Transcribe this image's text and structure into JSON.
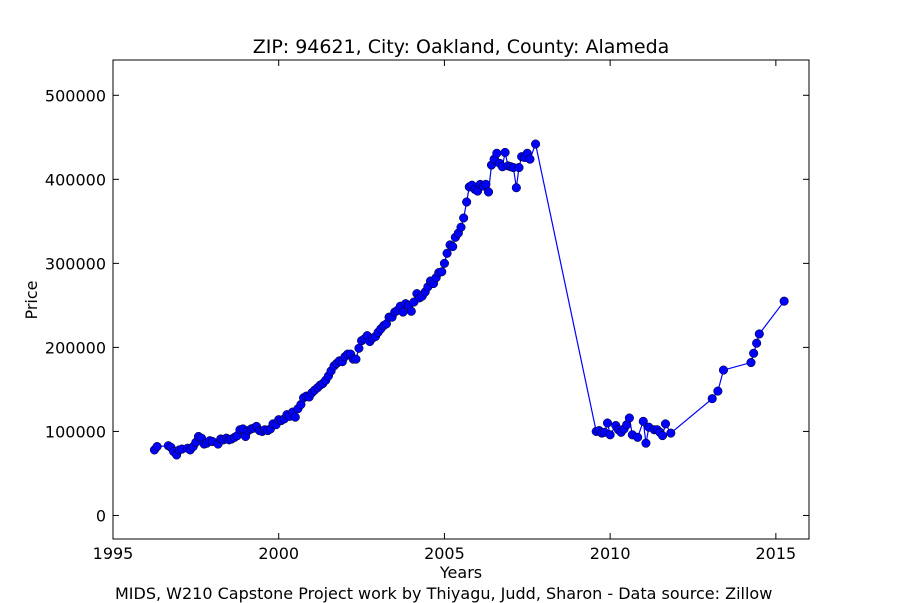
{
  "chart_data": {
    "type": "line",
    "title": "ZIP: 94621, City: Oakland, County: Alameda",
    "xlabel": "Years",
    "ylabel": "Price",
    "xlim": [
      1995,
      2016
    ],
    "ylim": [
      -28000,
      542000
    ],
    "x_ticks": [
      1995,
      2000,
      2005,
      2010,
      2015
    ],
    "y_ticks": [
      0,
      100000,
      200000,
      300000,
      400000,
      500000
    ],
    "grid": false,
    "legend": "none",
    "series": [
      {
        "color": "#0000ff",
        "marker": "circle",
        "points": [
          [
            1996.25,
            78000
          ],
          [
            1996.33,
            82000
          ],
          [
            1996.67,
            83000
          ],
          [
            1996.75,
            81000
          ],
          [
            1996.83,
            76000
          ],
          [
            1996.92,
            72000
          ],
          [
            1997.0,
            78000
          ],
          [
            1997.08,
            79000
          ],
          [
            1997.25,
            80000
          ],
          [
            1997.33,
            78000
          ],
          [
            1997.42,
            82000
          ],
          [
            1997.5,
            87000
          ],
          [
            1997.58,
            94000
          ],
          [
            1997.67,
            92000
          ],
          [
            1997.75,
            85000
          ],
          [
            1997.83,
            86000
          ],
          [
            1997.92,
            89000
          ],
          [
            1998.0,
            88000
          ],
          [
            1998.17,
            85000
          ],
          [
            1998.25,
            91000
          ],
          [
            1998.33,
            90000
          ],
          [
            1998.42,
            92000
          ],
          [
            1998.5,
            90000
          ],
          [
            1998.58,
            91000
          ],
          [
            1998.67,
            93000
          ],
          [
            1998.75,
            95000
          ],
          [
            1998.83,
            102000
          ],
          [
            1998.92,
            103000
          ],
          [
            1999.0,
            94000
          ],
          [
            1999.08,
            101000
          ],
          [
            1999.17,
            103000
          ],
          [
            1999.25,
            104000
          ],
          [
            1999.33,
            106000
          ],
          [
            1999.42,
            101000
          ],
          [
            1999.5,
            100000
          ],
          [
            1999.58,
            102000
          ],
          [
            1999.67,
            101000
          ],
          [
            1999.75,
            103000
          ],
          [
            1999.83,
            109000
          ],
          [
            1999.92,
            108000
          ],
          [
            2000.0,
            114000
          ],
          [
            2000.08,
            113000
          ],
          [
            2000.17,
            115000
          ],
          [
            2000.25,
            120000
          ],
          [
            2000.33,
            118000
          ],
          [
            2000.42,
            123000
          ],
          [
            2000.5,
            117000
          ],
          [
            2000.58,
            127000
          ],
          [
            2000.67,
            132000
          ],
          [
            2000.75,
            140000
          ],
          [
            2000.83,
            142000
          ],
          [
            2000.92,
            141000
          ],
          [
            2001.0,
            146000
          ],
          [
            2001.08,
            149000
          ],
          [
            2001.17,
            152000
          ],
          [
            2001.25,
            155000
          ],
          [
            2001.33,
            157000
          ],
          [
            2001.42,
            161000
          ],
          [
            2001.5,
            166000
          ],
          [
            2001.58,
            172000
          ],
          [
            2001.67,
            178000
          ],
          [
            2001.75,
            181000
          ],
          [
            2001.83,
            184000
          ],
          [
            2001.92,
            183000
          ],
          [
            2002.0,
            189000
          ],
          [
            2002.08,
            192000
          ],
          [
            2002.17,
            192000
          ],
          [
            2002.25,
            186000
          ],
          [
            2002.33,
            186000
          ],
          [
            2002.42,
            199000
          ],
          [
            2002.5,
            208000
          ],
          [
            2002.58,
            210000
          ],
          [
            2002.67,
            214000
          ],
          [
            2002.75,
            207000
          ],
          [
            2002.83,
            211000
          ],
          [
            2002.92,
            213000
          ],
          [
            2003.0,
            218000
          ],
          [
            2003.08,
            222000
          ],
          [
            2003.17,
            226000
          ],
          [
            2003.25,
            228000
          ],
          [
            2003.33,
            236000
          ],
          [
            2003.42,
            236000
          ],
          [
            2003.5,
            242000
          ],
          [
            2003.58,
            244000
          ],
          [
            2003.67,
            249000
          ],
          [
            2003.75,
            242000
          ],
          [
            2003.83,
            252000
          ],
          [
            2003.92,
            250000
          ],
          [
            2004.0,
            243000
          ],
          [
            2004.08,
            254000
          ],
          [
            2004.17,
            264000
          ],
          [
            2004.25,
            259000
          ],
          [
            2004.33,
            261000
          ],
          [
            2004.42,
            266000
          ],
          [
            2004.5,
            272000
          ],
          [
            2004.58,
            279000
          ],
          [
            2004.67,
            276000
          ],
          [
            2004.75,
            283000
          ],
          [
            2004.83,
            289000
          ],
          [
            2004.92,
            290000
          ],
          [
            2005.0,
            300000
          ],
          [
            2005.08,
            312000
          ],
          [
            2005.17,
            322000
          ],
          [
            2005.25,
            320000
          ],
          [
            2005.33,
            331000
          ],
          [
            2005.42,
            336000
          ],
          [
            2005.5,
            343000
          ],
          [
            2005.58,
            354000
          ],
          [
            2005.67,
            373000
          ],
          [
            2005.75,
            391000
          ],
          [
            2005.83,
            393000
          ],
          [
            2005.92,
            388000
          ],
          [
            2006.0,
            386000
          ],
          [
            2006.08,
            394000
          ],
          [
            2006.17,
            392000
          ],
          [
            2006.25,
            394000
          ],
          [
            2006.33,
            385000
          ],
          [
            2006.42,
            417000
          ],
          [
            2006.5,
            424000
          ],
          [
            2006.58,
            431000
          ],
          [
            2006.67,
            419000
          ],
          [
            2006.75,
            415000
          ],
          [
            2006.83,
            432000
          ],
          [
            2006.92,
            416000
          ],
          [
            2007.0,
            415000
          ],
          [
            2007.08,
            414000
          ],
          [
            2007.17,
            390000
          ],
          [
            2007.25,
            414000
          ],
          [
            2007.33,
            427000
          ],
          [
            2007.42,
            426000
          ],
          [
            2007.5,
            431000
          ],
          [
            2007.58,
            424000
          ],
          [
            2007.75,
            442000
          ],
          [
            2009.58,
            100000
          ],
          [
            2009.67,
            101000
          ],
          [
            2009.75,
            98000
          ],
          [
            2009.83,
            99000
          ],
          [
            2009.92,
            110000
          ],
          [
            2010.0,
            96000
          ],
          [
            2010.17,
            107000
          ],
          [
            2010.25,
            102000
          ],
          [
            2010.33,
            99000
          ],
          [
            2010.42,
            103000
          ],
          [
            2010.5,
            108000
          ],
          [
            2010.58,
            116000
          ],
          [
            2010.67,
            96000
          ],
          [
            2010.83,
            93000
          ],
          [
            2011.0,
            112000
          ],
          [
            2011.08,
            86000
          ],
          [
            2011.17,
            105000
          ],
          [
            2011.33,
            102000
          ],
          [
            2011.42,
            102000
          ],
          [
            2011.5,
            99000
          ],
          [
            2011.58,
            95000
          ],
          [
            2011.67,
            109000
          ],
          [
            2011.83,
            98000
          ],
          [
            2013.08,
            139000
          ],
          [
            2013.25,
            148000
          ],
          [
            2013.42,
            173000
          ],
          [
            2014.25,
            182000
          ],
          [
            2014.33,
            193000
          ],
          [
            2014.42,
            205000
          ],
          [
            2014.5,
            216000
          ],
          [
            2015.25,
            255000
          ]
        ]
      }
    ]
  },
  "footer": "MIDS, W210 Capstone Project work by Thiyagu, Judd, Sharon  -  Data source: Zillow"
}
